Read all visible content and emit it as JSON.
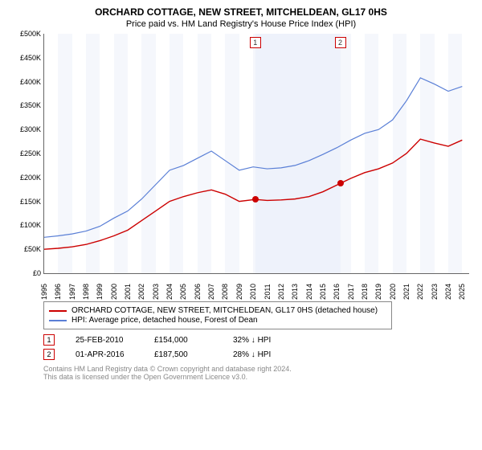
{
  "title": "ORCHARD COTTAGE, NEW STREET, MITCHELDEAN, GL17 0HS",
  "subtitle": "Price paid vs. HM Land Registry's House Price Index (HPI)",
  "chart": {
    "type": "line",
    "background_color": "#ffffff",
    "xlim": [
      1995,
      2025.5
    ],
    "ylim": [
      0,
      500000
    ],
    "ytick_step": 50000,
    "ytick_format": "£K",
    "xticks": [
      1995,
      1996,
      1997,
      1998,
      1999,
      2000,
      2001,
      2002,
      2003,
      2004,
      2005,
      2006,
      2007,
      2008,
      2009,
      2010,
      2011,
      2012,
      2013,
      2014,
      2015,
      2016,
      2017,
      2018,
      2019,
      2020,
      2021,
      2022,
      2023,
      2024,
      2025
    ],
    "shaded_band": {
      "from": 2010.15,
      "to": 2016.25,
      "color": "#eef2fb"
    },
    "vbands_color": "#f5f7fc",
    "grid_color": "#eeeeee",
    "series": [
      {
        "name": "property_price",
        "label": "ORCHARD COTTAGE, NEW STREET, MITCHELDEAN, GL17 0HS (detached house)",
        "color": "#cc0000",
        "line_width": 1.4,
        "points": [
          [
            1995,
            50000
          ],
          [
            1996,
            52000
          ],
          [
            1997,
            55000
          ],
          [
            1998,
            60000
          ],
          [
            1999,
            68000
          ],
          [
            2000,
            78000
          ],
          [
            2001,
            90000
          ],
          [
            2002,
            110000
          ],
          [
            2003,
            130000
          ],
          [
            2004,
            150000
          ],
          [
            2005,
            160000
          ],
          [
            2006,
            168000
          ],
          [
            2007,
            174000
          ],
          [
            2008,
            165000
          ],
          [
            2009,
            150000
          ],
          [
            2010.15,
            154000
          ],
          [
            2011,
            152000
          ],
          [
            2012,
            153000
          ],
          [
            2013,
            155000
          ],
          [
            2014,
            160000
          ],
          [
            2015,
            170000
          ],
          [
            2016.25,
            187500
          ],
          [
            2017,
            198000
          ],
          [
            2018,
            210000
          ],
          [
            2019,
            218000
          ],
          [
            2020,
            230000
          ],
          [
            2021,
            250000
          ],
          [
            2022,
            280000
          ],
          [
            2023,
            272000
          ],
          [
            2024,
            265000
          ],
          [
            2025,
            278000
          ]
        ]
      },
      {
        "name": "hpi_index",
        "label": "HPI: Average price, detached house, Forest of Dean",
        "color": "#5a7fd6",
        "line_width": 1.2,
        "points": [
          [
            1995,
            75000
          ],
          [
            1996,
            78000
          ],
          [
            1997,
            82000
          ],
          [
            1998,
            88000
          ],
          [
            1999,
            98000
          ],
          [
            2000,
            115000
          ],
          [
            2001,
            130000
          ],
          [
            2002,
            155000
          ],
          [
            2003,
            185000
          ],
          [
            2004,
            215000
          ],
          [
            2005,
            225000
          ],
          [
            2006,
            240000
          ],
          [
            2007,
            255000
          ],
          [
            2008,
            235000
          ],
          [
            2009,
            215000
          ],
          [
            2010,
            222000
          ],
          [
            2011,
            218000
          ],
          [
            2012,
            220000
          ],
          [
            2013,
            225000
          ],
          [
            2014,
            235000
          ],
          [
            2015,
            248000
          ],
          [
            2016,
            262000
          ],
          [
            2017,
            278000
          ],
          [
            2018,
            292000
          ],
          [
            2019,
            300000
          ],
          [
            2020,
            320000
          ],
          [
            2021,
            360000
          ],
          [
            2022,
            408000
          ],
          [
            2023,
            395000
          ],
          [
            2024,
            380000
          ],
          [
            2025,
            390000
          ]
        ]
      }
    ],
    "markers": [
      {
        "id": "1",
        "x": 2010.15,
        "y": 154000
      },
      {
        "id": "2",
        "x": 2016.25,
        "y": 187500
      }
    ]
  },
  "legend": {
    "items": [
      {
        "color": "#cc0000",
        "text": "ORCHARD COTTAGE, NEW STREET, MITCHELDEAN, GL17 0HS (detached house)"
      },
      {
        "color": "#5a7fd6",
        "text": "HPI: Average price, detached house, Forest of Dean"
      }
    ]
  },
  "transactions": [
    {
      "id": "1",
      "date": "25-FEB-2010",
      "price": "£154,000",
      "delta": "32% ↓ HPI"
    },
    {
      "id": "2",
      "date": "01-APR-2016",
      "price": "£187,500",
      "delta": "28% ↓ HPI"
    }
  ],
  "footer": {
    "line1": "Contains HM Land Registry data © Crown copyright and database right 2024.",
    "line2": "This data is licensed under the Open Government Licence v3.0."
  }
}
